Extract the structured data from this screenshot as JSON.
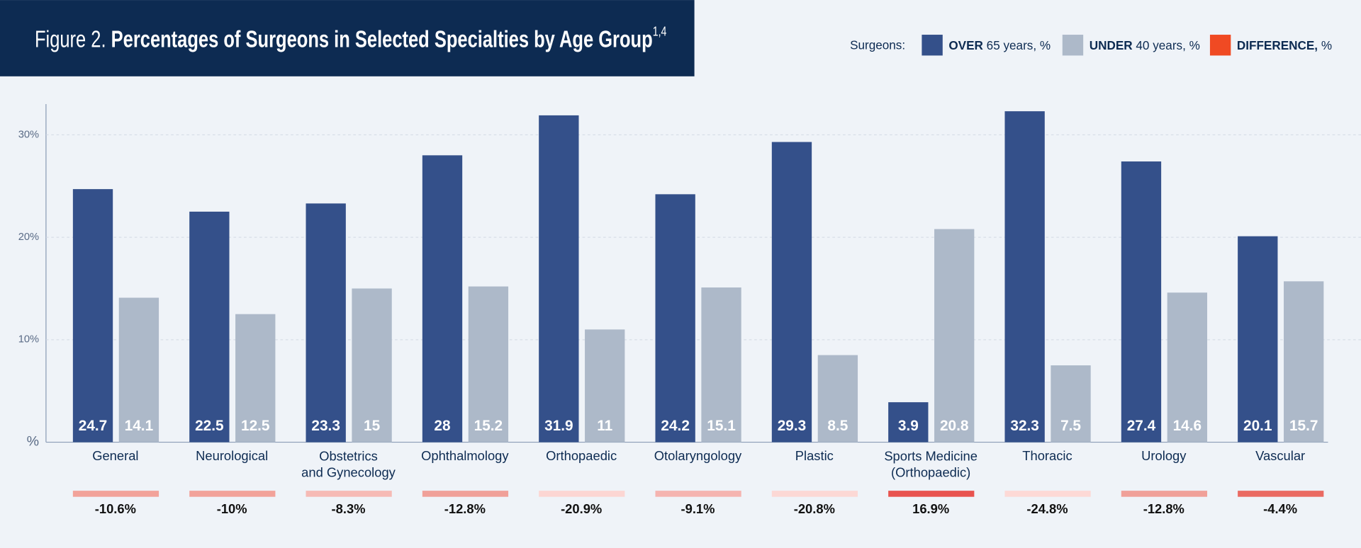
{
  "figure_label": "Figure 2.",
  "title": "Percentages of Surgeons in Selected Specialties by Age Group",
  "title_note": "1,4",
  "chart_data": {
    "type": "bar",
    "legend_title": "Surgeons:",
    "categories": [
      "General",
      "Neurological",
      "Obstetrics\nand Gynecology",
      "Ophthalmology",
      "Orthopaedic",
      "Otolaryngology",
      "Plastic",
      "Sports Medicine\n(Orthopaedic)",
      "Thoracic",
      "Urology",
      "Vascular"
    ],
    "series": [
      {
        "name": "OVER 65 years, %",
        "color": "#34508a",
        "values": [
          24.7,
          22.5,
          23.3,
          28,
          31.9,
          24.2,
          29.3,
          3.9,
          32.3,
          27.4,
          20.1
        ]
      },
      {
        "name": "UNDER 40 years, %",
        "color": "#adb9c9",
        "values": [
          14.1,
          12.5,
          15,
          15.2,
          11,
          15.1,
          8.5,
          20.8,
          7.5,
          14.6,
          15.7
        ]
      }
    ],
    "difference": {
      "name": "DIFFERENCE, %",
      "color": "#f04a23",
      "values": [
        -10.6,
        -10,
        -8.3,
        -12.8,
        -20.9,
        -9.1,
        -20.8,
        16.9,
        -24.8,
        -12.8,
        -4.4
      ],
      "value_labels": [
        "-10.6%",
        "-10%",
        "-8.3%",
        "-12.8%",
        "-20.9%",
        "-9.1%",
        "-20.8%",
        "16.9%",
        "-24.8%",
        "-12.8%",
        "-4.4%"
      ],
      "colors": [
        "#f2a29a",
        "#f2a29a",
        "#f6bab5",
        "#f0a099",
        "#fcd6d3",
        "#f5b4b0",
        "#fcd8d5",
        "#e8534f",
        "#fdd9d6",
        "#f0a099",
        "#ea6a62"
      ]
    },
    "ylim": [
      0,
      33
    ],
    "yticks": [
      {
        "value": 0,
        "label": "%"
      },
      {
        "value": 10,
        "label": "10%"
      },
      {
        "value": 20,
        "label": "20%"
      },
      {
        "value": 30,
        "label": "30%"
      }
    ],
    "grid": true
  }
}
